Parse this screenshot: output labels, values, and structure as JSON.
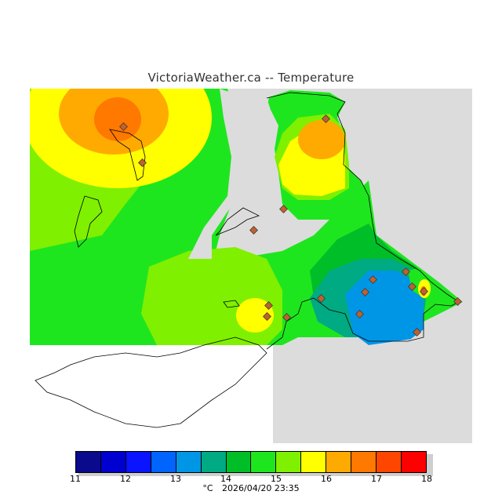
{
  "header": {
    "title": "VictoriaWeather.ca -- Temperature"
  },
  "legend": {
    "ticks": [
      "11",
      "12",
      "13",
      "14",
      "15",
      "16",
      "17",
      "18"
    ],
    "colors": [
      "#0a0a8c",
      "#0000d0",
      "#0a14ff",
      "#0064ff",
      "#0096e6",
      "#00aa82",
      "#00be28",
      "#1ee61e",
      "#7ff000",
      "#ffff00",
      "#ffaa00",
      "#ff7800",
      "#ff4600",
      "#ff0000"
    ]
  },
  "footer": {
    "unit": "°C",
    "timestamp": "2026/04/20 23:35"
  }
}
